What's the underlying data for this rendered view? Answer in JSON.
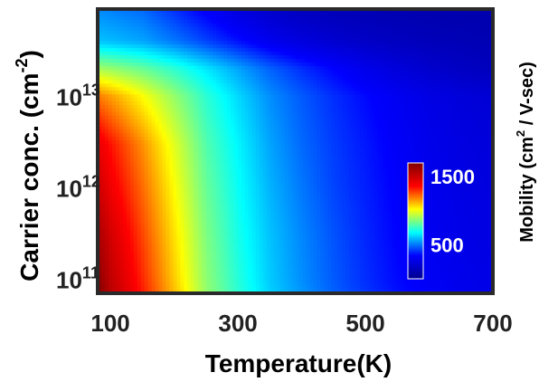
{
  "chart_data": {
    "type": "heatmap",
    "title": "",
    "xlabel": "Temperature(K)",
    "ylabel": "Carrier conc. (cm",
    "ylabel_sup": "-2",
    "ylabel_end": ")",
    "colorbar_label": "Mobility (cm",
    "colorbar_label_sup": "2",
    "colorbar_label_end": " / V-sec)",
    "x_scale": "linear",
    "y_scale": "log",
    "xlim": [
      80,
      700
    ],
    "ylim": [
      70000000000.0,
      90000000000000.0
    ],
    "x_ticks": [
      {
        "value": 100,
        "label": "100"
      },
      {
        "value": 300,
        "label": "300"
      },
      {
        "value": 500,
        "label": "500"
      },
      {
        "value": 700,
        "label": "700"
      }
    ],
    "y_ticks": [
      {
        "value": 100000000000.0,
        "base": "10",
        "exp": "11"
      },
      {
        "value": 1000000000000.0,
        "base": "10",
        "exp": "12"
      },
      {
        "value": 10000000000000.0,
        "base": "10",
        "exp": "13"
      }
    ],
    "colorbar": {
      "range": [
        0,
        1700
      ],
      "ticks": [
        {
          "value": 1500,
          "label": "1500"
        },
        {
          "value": 500,
          "label": "500"
        }
      ],
      "colormap": [
        "#00008f",
        "#0000ff",
        "#00ffff",
        "#ffff00",
        "#ff0000",
        "#800000"
      ],
      "placement": "inside-right"
    },
    "x": [
      80,
      100,
      150,
      200,
      250,
      300,
      350,
      400,
      450,
      500,
      550,
      600,
      650,
      700
    ],
    "y": [
      70000000000.0,
      100000000000.0,
      300000000000.0,
      1000000000000.0,
      3000000000000.0,
      10000000000000.0,
      20000000000000.0,
      40000000000000.0,
      90000000000000.0
    ],
    "z": [
      [
        1700,
        1550,
        1330,
        1110,
        880,
        740,
        620,
        540,
        470,
        410,
        360,
        320,
        290,
        270
      ],
      [
        1670,
        1530,
        1310,
        1090,
        870,
        730,
        610,
        530,
        460,
        400,
        350,
        310,
        280,
        260
      ],
      [
        1600,
        1480,
        1270,
        1060,
        850,
        710,
        600,
        520,
        450,
        390,
        340,
        300,
        270,
        250
      ],
      [
        1500,
        1400,
        1220,
        1020,
        820,
        690,
        580,
        500,
        430,
        380,
        330,
        290,
        260,
        240
      ],
      [
        1420,
        1340,
        1170,
        980,
        790,
        670,
        560,
        480,
        420,
        370,
        320,
        280,
        250,
        230
      ],
      [
        1200,
        1150,
        1020,
        880,
        740,
        630,
        530,
        460,
        400,
        350,
        300,
        260,
        230,
        210
      ],
      [
        900,
        880,
        820,
        740,
        650,
        560,
        470,
        400,
        340,
        280,
        230,
        190,
        160,
        140
      ],
      [
        600,
        590,
        560,
        500,
        430,
        360,
        290,
        240,
        200,
        170,
        150,
        130,
        120,
        110
      ],
      [
        520,
        510,
        480,
        400,
        320,
        240,
        180,
        140,
        120,
        110,
        100,
        95,
        90,
        90
      ]
    ]
  }
}
